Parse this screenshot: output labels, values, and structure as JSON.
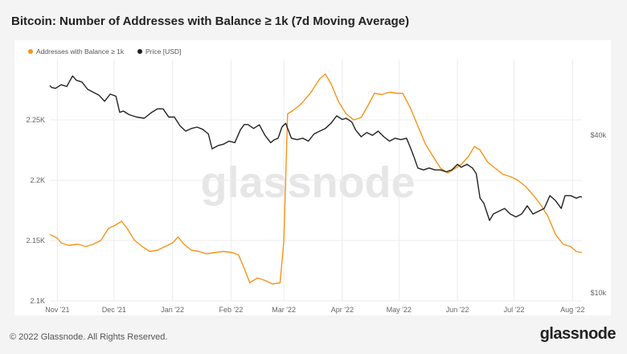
{
  "page": {
    "title": "Bitcoin: Number of Addresses with Balance ≥ 1k (7d Moving Average)",
    "copyright": "© 2022 Glassnode. All Rights Reserved.",
    "brand": "glassnode",
    "watermark": "glassnode"
  },
  "colors": {
    "addresses": "#f7931a",
    "price": "#222222",
    "grid": "#ececec"
  },
  "chart_data": {
    "type": "line",
    "title": "Bitcoin: Number of Addresses with Balance ≥ 1k (7d Moving Average)",
    "legend": {
      "position": "top-left",
      "entries": [
        "Addresses with Balance ≥ 1k",
        "Price [USD]"
      ]
    },
    "grid": true,
    "x_ticks": [
      "Nov '21",
      "Dec '21",
      "Jan '22",
      "Feb '22",
      "Mar '22",
      "Apr '22",
      "May '22",
      "Jun '22",
      "Jul '22",
      "Aug '22"
    ],
    "y_left": {
      "ticks": [
        "2.1K",
        "2.15K",
        "2.2K",
        "2.25K"
      ],
      "min": 2100,
      "max": 2300
    },
    "y_right": {
      "ticks": [
        "$10k",
        "$40k"
      ],
      "scale": "log",
      "min": 9300,
      "max": 78000
    },
    "series": [
      {
        "name": "Addresses with Balance ≥ 1k",
        "axis": "left",
        "points": [
          [
            "2021-10-28",
            2155
          ],
          [
            "2021-11-01",
            2152
          ],
          [
            "2021-11-03",
            2148
          ],
          [
            "2021-11-07",
            2146
          ],
          [
            "2021-11-12",
            2147
          ],
          [
            "2021-11-16",
            2145
          ],
          [
            "2021-11-20",
            2147
          ],
          [
            "2021-11-24",
            2150
          ],
          [
            "2021-11-28",
            2160
          ],
          [
            "2021-12-02",
            2163
          ],
          [
            "2021-12-05",
            2166
          ],
          [
            "2021-12-08",
            2160
          ],
          [
            "2021-12-12",
            2150
          ],
          [
            "2021-12-16",
            2145
          ],
          [
            "2021-12-20",
            2141
          ],
          [
            "2021-12-24",
            2142
          ],
          [
            "2021-12-28",
            2145
          ],
          [
            "2022-01-01",
            2148
          ],
          [
            "2022-01-04",
            2153
          ],
          [
            "2022-01-07",
            2147
          ],
          [
            "2022-01-11",
            2142
          ],
          [
            "2022-01-15",
            2141
          ],
          [
            "2022-01-19",
            2139
          ],
          [
            "2022-01-23",
            2140
          ],
          [
            "2022-01-28",
            2141
          ],
          [
            "2022-02-02",
            2140
          ],
          [
            "2022-02-05",
            2138
          ],
          [
            "2022-02-08",
            2127
          ],
          [
            "2022-02-11",
            2115
          ],
          [
            "2022-02-15",
            2119
          ],
          [
            "2022-02-19",
            2117
          ],
          [
            "2022-02-23",
            2114
          ],
          [
            "2022-02-27",
            2115
          ],
          [
            "2022-03-01",
            2150
          ],
          [
            "2022-03-03",
            2255
          ],
          [
            "2022-03-06",
            2258
          ],
          [
            "2022-03-10",
            2263
          ],
          [
            "2022-03-15",
            2272
          ],
          [
            "2022-03-20",
            2284
          ],
          [
            "2022-03-23",
            2288
          ],
          [
            "2022-03-26",
            2280
          ],
          [
            "2022-03-30",
            2265
          ],
          [
            "2022-04-03",
            2255
          ],
          [
            "2022-04-07",
            2250
          ],
          [
            "2022-04-11",
            2252
          ],
          [
            "2022-04-15",
            2263
          ],
          [
            "2022-04-18",
            2272
          ],
          [
            "2022-04-22",
            2271
          ],
          [
            "2022-04-26",
            2273
          ],
          [
            "2022-04-30",
            2272
          ],
          [
            "2022-05-03",
            2272
          ],
          [
            "2022-05-07",
            2260
          ],
          [
            "2022-05-11",
            2245
          ],
          [
            "2022-05-15",
            2230
          ],
          [
            "2022-05-19",
            2220
          ],
          [
            "2022-05-23",
            2210
          ],
          [
            "2022-05-27",
            2206
          ],
          [
            "2022-05-31",
            2210
          ],
          [
            "2022-06-03",
            2213
          ],
          [
            "2022-06-07",
            2220
          ],
          [
            "2022-06-10",
            2228
          ],
          [
            "2022-06-13",
            2225
          ],
          [
            "2022-06-17",
            2215
          ],
          [
            "2022-06-21",
            2210
          ],
          [
            "2022-06-25",
            2205
          ],
          [
            "2022-06-29",
            2203
          ],
          [
            "2022-07-03",
            2200
          ],
          [
            "2022-07-07",
            2195
          ],
          [
            "2022-07-11",
            2188
          ],
          [
            "2022-07-15",
            2180
          ],
          [
            "2022-07-19",
            2170
          ],
          [
            "2022-07-23",
            2155
          ],
          [
            "2022-07-27",
            2147
          ],
          [
            "2022-07-31",
            2145
          ],
          [
            "2022-08-03",
            2141
          ],
          [
            "2022-08-06",
            2140
          ]
        ]
      },
      {
        "name": "Price [USD]",
        "axis": "right",
        "points": [
          [
            "2021-10-28",
            62000
          ],
          [
            "2021-10-29",
            61000
          ],
          [
            "2021-10-31",
            60500
          ],
          [
            "2021-11-03",
            62500
          ],
          [
            "2021-11-06",
            61500
          ],
          [
            "2021-11-09",
            67500
          ],
          [
            "2021-11-11",
            65000
          ],
          [
            "2021-11-14",
            64000
          ],
          [
            "2021-11-17",
            60000
          ],
          [
            "2021-11-20",
            58500
          ],
          [
            "2021-11-23",
            57000
          ],
          [
            "2021-11-26",
            54000
          ],
          [
            "2021-11-29",
            57500
          ],
          [
            "2021-12-02",
            56500
          ],
          [
            "2021-12-04",
            49000
          ],
          [
            "2021-12-06",
            49500
          ],
          [
            "2021-12-09",
            48000
          ],
          [
            "2021-12-13",
            47000
          ],
          [
            "2021-12-17",
            46500
          ],
          [
            "2021-12-21",
            49000
          ],
          [
            "2021-12-24",
            50500
          ],
          [
            "2021-12-27",
            50500
          ],
          [
            "2021-12-30",
            47000
          ],
          [
            "2022-01-02",
            47000
          ],
          [
            "2022-01-05",
            43500
          ],
          [
            "2022-01-08",
            41500
          ],
          [
            "2022-01-11",
            42500
          ],
          [
            "2022-01-14",
            43000
          ],
          [
            "2022-01-17",
            42200
          ],
          [
            "2022-01-20",
            40500
          ],
          [
            "2022-01-22",
            35500
          ],
          [
            "2022-01-25",
            36500
          ],
          [
            "2022-01-28",
            37000
          ],
          [
            "2022-01-31",
            38000
          ],
          [
            "2022-02-03",
            37500
          ],
          [
            "2022-02-06",
            42000
          ],
          [
            "2022-02-08",
            44000
          ],
          [
            "2022-02-10",
            44000
          ],
          [
            "2022-02-13",
            42500
          ],
          [
            "2022-02-16",
            43900
          ],
          [
            "2022-02-19",
            40000
          ],
          [
            "2022-02-22",
            37500
          ],
          [
            "2022-02-24",
            38500
          ],
          [
            "2022-02-26",
            39000
          ],
          [
            "2022-02-28",
            43000
          ],
          [
            "2022-03-02",
            44500
          ],
          [
            "2022-03-05",
            39000
          ],
          [
            "2022-03-08",
            38500
          ],
          [
            "2022-03-11",
            39000
          ],
          [
            "2022-03-14",
            38000
          ],
          [
            "2022-03-17",
            40500
          ],
          [
            "2022-03-20",
            41500
          ],
          [
            "2022-03-23",
            42500
          ],
          [
            "2022-03-26",
            44500
          ],
          [
            "2022-03-29",
            47500
          ],
          [
            "2022-04-01",
            46000
          ],
          [
            "2022-04-03",
            46500
          ],
          [
            "2022-04-06",
            45000
          ],
          [
            "2022-04-08",
            42000
          ],
          [
            "2022-04-11",
            39500
          ],
          [
            "2022-04-14",
            41000
          ],
          [
            "2022-04-17",
            40000
          ],
          [
            "2022-04-20",
            41500
          ],
          [
            "2022-04-23",
            39500
          ],
          [
            "2022-04-26",
            38000
          ],
          [
            "2022-04-29",
            39000
          ],
          [
            "2022-05-02",
            38500
          ],
          [
            "2022-05-05",
            39000
          ],
          [
            "2022-05-07",
            36000
          ],
          [
            "2022-05-09",
            33000
          ],
          [
            "2022-05-11",
            30000
          ],
          [
            "2022-05-14",
            29500
          ],
          [
            "2022-05-17",
            30000
          ],
          [
            "2022-05-20",
            29500
          ],
          [
            "2022-05-23",
            29500
          ],
          [
            "2022-05-26",
            29000
          ],
          [
            "2022-05-29",
            29500
          ],
          [
            "2022-06-01",
            31000
          ],
          [
            "2022-06-03",
            30200
          ],
          [
            "2022-06-06",
            31000
          ],
          [
            "2022-06-09",
            30000
          ],
          [
            "2022-06-11",
            28500
          ],
          [
            "2022-06-13",
            23000
          ],
          [
            "2022-06-15",
            22000
          ],
          [
            "2022-06-18",
            18900
          ],
          [
            "2022-06-20",
            20000
          ],
          [
            "2022-06-23",
            20500
          ],
          [
            "2022-06-26",
            21000
          ],
          [
            "2022-06-29",
            20000
          ],
          [
            "2022-07-02",
            19500
          ],
          [
            "2022-07-05",
            20000
          ],
          [
            "2022-07-08",
            21500
          ],
          [
            "2022-07-11",
            20000
          ],
          [
            "2022-07-14",
            20500
          ],
          [
            "2022-07-17",
            21000
          ],
          [
            "2022-07-20",
            23500
          ],
          [
            "2022-07-23",
            22500
          ],
          [
            "2022-07-26",
            21000
          ],
          [
            "2022-07-28",
            23500
          ],
          [
            "2022-07-31",
            23500
          ],
          [
            "2022-08-03",
            23000
          ],
          [
            "2022-08-05",
            23300
          ],
          [
            "2022-08-06",
            23200
          ]
        ]
      }
    ]
  }
}
